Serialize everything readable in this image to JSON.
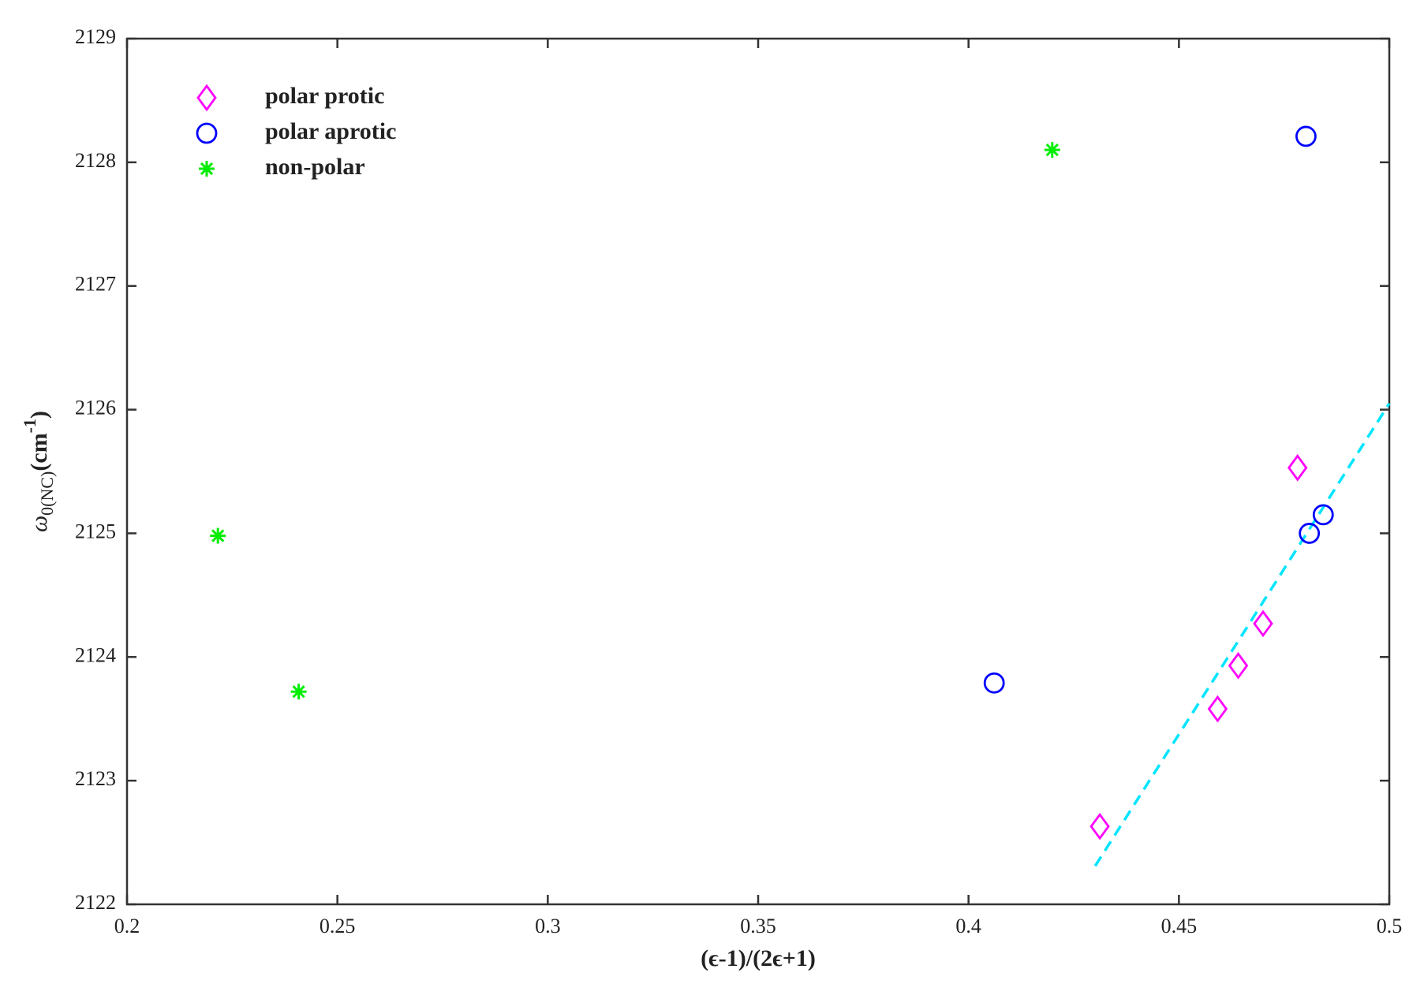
{
  "chart_data": {
    "type": "scatter",
    "xlabel": "(ϵ-1)/(2ϵ+1)",
    "ylabel": {
      "symbol": "ω",
      "subscript": "0(NC)",
      "unit": "(cm",
      "exponent": "-1",
      "close": ")"
    },
    "xlim": [
      0.2,
      0.5
    ],
    "xticks": [
      0.2,
      0.25,
      0.3,
      0.35,
      0.4,
      0.45,
      0.5
    ],
    "ylim": [
      2122,
      2129
    ],
    "yticks": [
      2122,
      2123,
      2124,
      2125,
      2126,
      2127,
      2128,
      2129
    ],
    "legend": "upper left",
    "series": [
      {
        "name": "polar protic",
        "color": "#ff00ff",
        "marker": "diamond",
        "x": [
          0.4312,
          0.4592,
          0.4641,
          0.47,
          0.4782
        ],
        "values": [
          2122.63,
          2123.58,
          2123.93,
          2124.27,
          2125.53
        ]
      },
      {
        "name": "polar aprotic",
        "color": "#0000ff",
        "marker": "circle",
        "x": [
          0.4061,
          0.4802,
          0.481,
          0.4843
        ],
        "values": [
          2123.79,
          2128.21,
          2125.0,
          2125.15
        ]
      },
      {
        "name": "non-polar",
        "color": "#00ee00",
        "marker": "asterisk",
        "x": [
          0.2216,
          0.2408,
          0.4199
        ],
        "values": [
          2124.98,
          2123.72,
          2128.1
        ]
      }
    ],
    "fit": {
      "color": "#00e5ff",
      "dashed": true,
      "x": [
        0.4301,
        0.5
      ],
      "values": [
        2122.31,
        2126.05
      ]
    }
  }
}
